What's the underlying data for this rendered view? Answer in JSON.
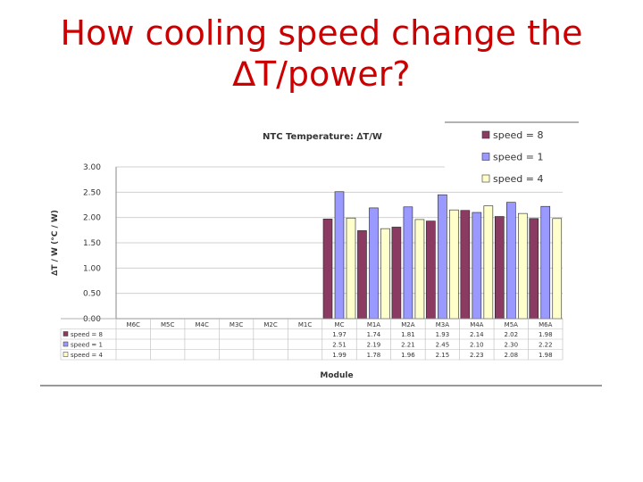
{
  "slide": {
    "title_line1": "How cooling speed change the",
    "title_line2": "∆T/power?"
  },
  "chart_data": {
    "type": "bar",
    "title": "NTC Temperature: ∆T/W",
    "xlabel": "Module",
    "ylabel": "∆T / W   (°C / W)",
    "ylim": [
      0,
      3
    ],
    "yticks": [
      "0.00",
      "0.50",
      "1.00",
      "1.50",
      "2.00",
      "2.50",
      "3.00"
    ],
    "grid": true,
    "legend_position": "top-right",
    "categories": [
      "M6C",
      "M5C",
      "M4C",
      "M3C",
      "M2C",
      "M1C",
      "MC",
      "M1A",
      "M2A",
      "M3A",
      "M4A",
      "M5A",
      "M6A"
    ],
    "series": [
      {
        "name": "speed = 8",
        "color": "#8b3a62",
        "values": [
          null,
          null,
          null,
          null,
          null,
          null,
          1.97,
          1.74,
          1.81,
          1.93,
          2.14,
          2.02,
          1.98
        ],
        "labels": [
          "",
          "",
          "",
          "",
          "",
          "",
          "1.97",
          "1.74",
          "1.81",
          "1.93",
          "2.14",
          "2.02",
          "1.98"
        ]
      },
      {
        "name": "speed = 1",
        "color": "#9999ff",
        "values": [
          null,
          null,
          null,
          null,
          null,
          null,
          2.51,
          2.19,
          2.21,
          2.45,
          2.1,
          2.3,
          2.22
        ],
        "labels": [
          "",
          "",
          "",
          "",
          "",
          "",
          "2.51",
          "2.19",
          "2.21",
          "2.45",
          "2.10",
          "2.30",
          "2.22"
        ]
      },
      {
        "name": "speed = 4",
        "color": "#ffffcc",
        "values": [
          null,
          null,
          null,
          null,
          null,
          null,
          1.99,
          1.78,
          1.96,
          2.15,
          2.23,
          2.08,
          1.98
        ],
        "labels": [
          "",
          "",
          "",
          "",
          "",
          "",
          "1.99",
          "1.78",
          "1.96",
          "2.15",
          "2.23",
          "2.08",
          "1.98"
        ]
      }
    ]
  }
}
